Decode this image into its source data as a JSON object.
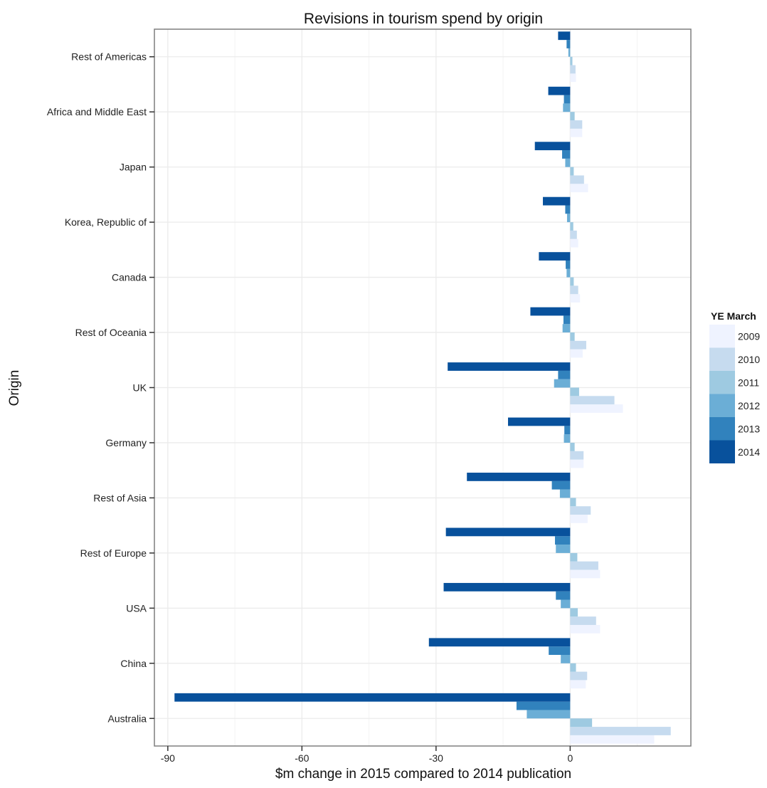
{
  "chart_data": {
    "type": "bar",
    "orientation": "horizontal",
    "title": "Revisions in tourism spend by origin",
    "xlabel": "$m change in 2015 compared to 2014 publication",
    "ylabel": "Origin",
    "xlim": [
      -93,
      27
    ],
    "xticks": [
      -90,
      -60,
      -30,
      0
    ],
    "grid": true,
    "legend_title": "YE March",
    "legend_position": "right",
    "categories": [
      "Rest of Americas",
      "Africa and Middle East",
      "Japan",
      "Korea, Republic of",
      "Canada",
      "Rest of Oceania",
      "UK",
      "Germany",
      "Rest of Asia",
      "Rest of Europe",
      "USA",
      "China",
      "Australia"
    ],
    "series": [
      {
        "name": "2009",
        "color": "#eff3ff",
        "values": [
          1.3,
          2.7,
          4.0,
          1.8,
          2.2,
          2.8,
          11.8,
          3.0,
          3.9,
          6.7,
          6.7,
          3.5,
          18.8
        ]
      },
      {
        "name": "2010",
        "color": "#c6dbef",
        "values": [
          1.2,
          2.7,
          3.1,
          1.5,
          1.8,
          3.6,
          9.9,
          3.0,
          4.6,
          6.3,
          5.8,
          3.8,
          22.5
        ]
      },
      {
        "name": "2011",
        "color": "#9ecae1",
        "values": [
          0.5,
          1.0,
          0.8,
          0.7,
          0.8,
          1.0,
          2.0,
          1.0,
          1.3,
          1.6,
          1.7,
          1.3,
          4.9
        ]
      },
      {
        "name": "2012",
        "color": "#6baed6",
        "values": [
          -0.4,
          -1.6,
          -1.1,
          -0.7,
          -0.8,
          -1.7,
          -3.6,
          -1.4,
          -2.3,
          -3.2,
          -2.1,
          -2.1,
          -9.7
        ]
      },
      {
        "name": "2013",
        "color": "#3182bd",
        "values": [
          -0.8,
          -1.4,
          -1.8,
          -1.1,
          -1.0,
          -1.5,
          -2.7,
          -1.3,
          -4.1,
          -3.4,
          -3.2,
          -4.8,
          -12.0
        ]
      },
      {
        "name": "2014",
        "color": "#08519c",
        "values": [
          -2.7,
          -4.9,
          -7.9,
          -6.1,
          -7.0,
          -8.9,
          -27.4,
          -13.9,
          -23.1,
          -27.8,
          -28.3,
          -31.6,
          -88.5
        ]
      }
    ]
  }
}
